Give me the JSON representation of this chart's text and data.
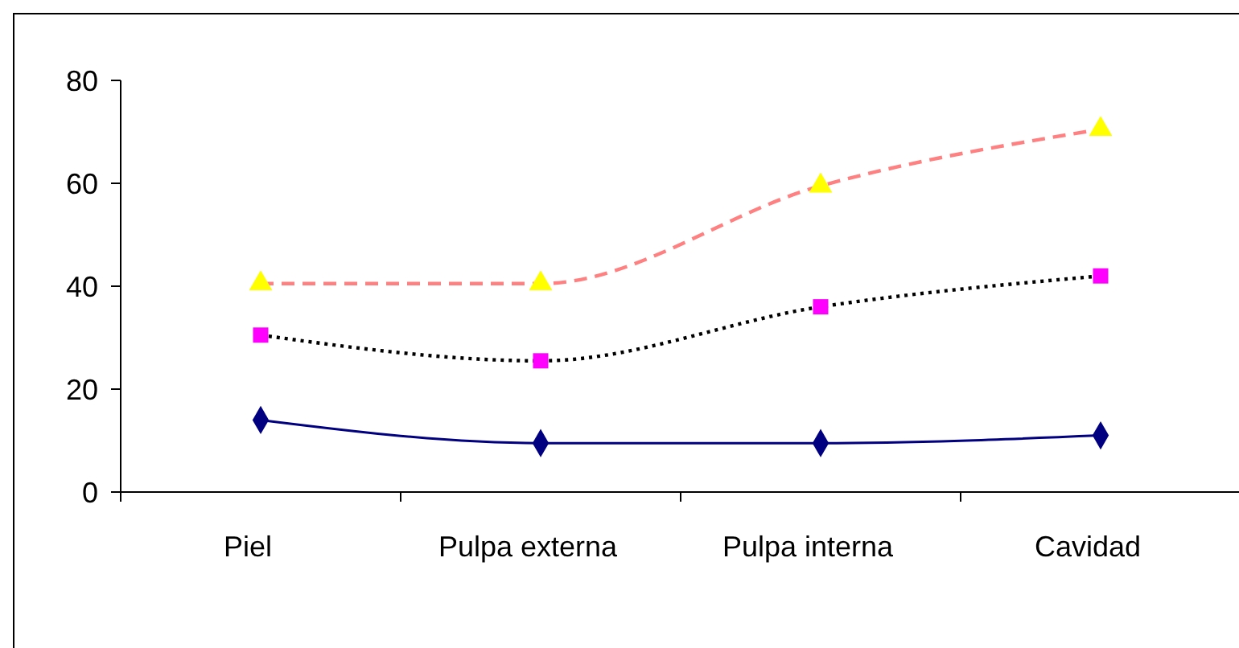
{
  "chart_data": {
    "type": "line",
    "categories": [
      "Piel",
      "Pulpa externa",
      "Pulpa interna",
      "Cavidad"
    ],
    "series": [
      {
        "color": "#000080",
        "colors": [
          "#000080",
          "#000080",
          "#000080",
          "#000080"
        ],
        "marker": "diamond",
        "line_style": "solid",
        "values": [
          14,
          9.5,
          9.5,
          11
        ]
      },
      {
        "color": "#000000",
        "colors": [
          "#ff00ff",
          "#ff00ff",
          "#ff00ff",
          "#ff00ff"
        ],
        "marker": "square",
        "line_style": "dotted",
        "values": [
          30.5,
          25.5,
          36,
          42
        ]
      },
      {
        "color": "#ff8080",
        "colors": [
          "#ffff00",
          "#ffff00",
          "#ffff00",
          "#ffff00"
        ],
        "marker": "triangle",
        "line_style": "dashed",
        "values": [
          40.5,
          40.5,
          59.5,
          70.5
        ]
      }
    ],
    "ylim": [
      0,
      80
    ],
    "yticks": [
      0,
      20,
      40,
      60,
      80
    ],
    "grid": false
  }
}
